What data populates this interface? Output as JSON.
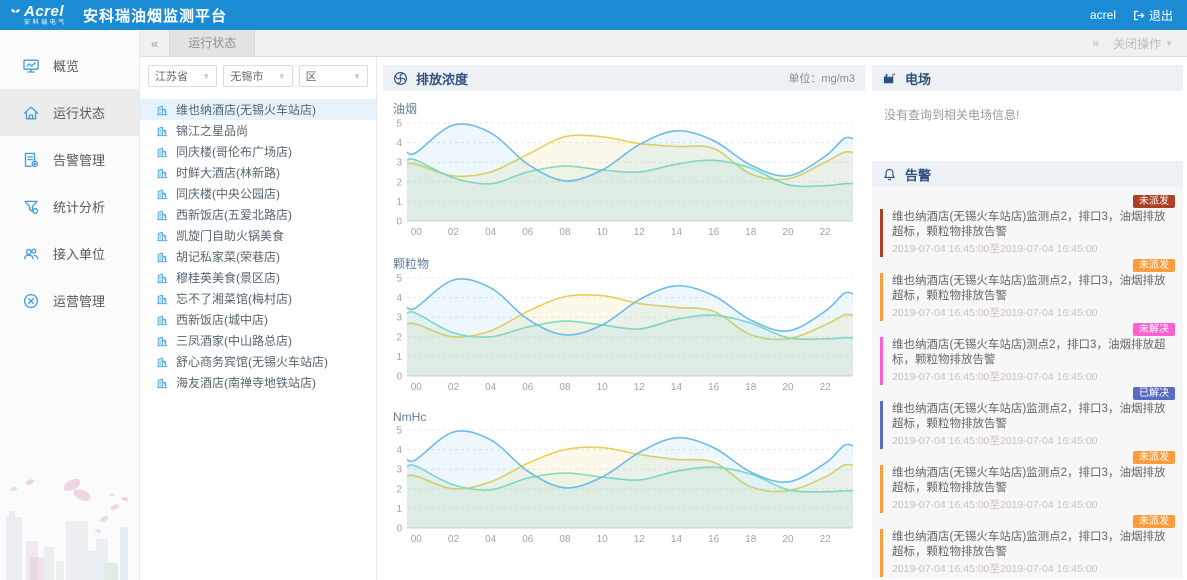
{
  "topbar": {
    "logo_text": "Acrel",
    "logo_sub": "安科瑞电气",
    "title": "安科瑞油烟监测平台",
    "username": "acrel",
    "logout": "退出"
  },
  "tabbar": {
    "collapse_icon": "«",
    "expand_icon": "»",
    "active_tab": "运行状态",
    "close_menu": "关闭操作"
  },
  "sidebar": {
    "items": [
      {
        "label": "概览",
        "icon": "overview-icon",
        "active": false
      },
      {
        "label": "运行状态",
        "icon": "running-status-icon",
        "active": true
      },
      {
        "label": "告警管理",
        "icon": "alarm-manage-icon",
        "active": false
      },
      {
        "label": "统计分析",
        "icon": "stats-icon",
        "active": false
      },
      {
        "label": "接入单位",
        "icon": "units-icon",
        "active": false
      },
      {
        "label": "运营管理",
        "icon": "ops-icon",
        "active": false
      }
    ]
  },
  "store_panel": {
    "filters": [
      {
        "value": "江苏省"
      },
      {
        "value": "无锡市"
      },
      {
        "value": "区"
      }
    ],
    "stores": [
      {
        "name": "维也纳酒店(无锡火车站店)",
        "selected": true
      },
      {
        "name": "锦江之星品尚",
        "selected": false
      },
      {
        "name": "同庆楼(哥伦布广场店)",
        "selected": false
      },
      {
        "name": "时鲜大酒店(林新路)",
        "selected": false
      },
      {
        "name": "同庆楼(中央公园店)",
        "selected": false
      },
      {
        "name": "西新饭店(五爱北路店)",
        "selected": false
      },
      {
        "name": "凯旋门自助火锅美食",
        "selected": false
      },
      {
        "name": "胡记私家菜(荣巷店)",
        "selected": false
      },
      {
        "name": "穆桂英美食(景区店)",
        "selected": false
      },
      {
        "name": "忘不了湘菜馆(梅村店)",
        "selected": false
      },
      {
        "name": "西新饭店(城中店)",
        "selected": false
      },
      {
        "name": "三凤酒家(中山路总店)",
        "selected": false
      },
      {
        "name": "舒心商务宾馆(无锡火车站店)",
        "selected": false
      },
      {
        "name": "海友酒店(南禅寺地铁站店)",
        "selected": false
      }
    ]
  },
  "charts_panel": {
    "title": "排放浓度",
    "unit": "单位：mg/m3"
  },
  "chart_data": [
    {
      "type": "area",
      "title": "油烟",
      "ylabel": "mg/m3",
      "ylim": [
        0,
        5
      ],
      "grid": true,
      "legend": "none",
      "x_hours": [
        0,
        2,
        4,
        6,
        8,
        10,
        12,
        14,
        16,
        18,
        20,
        22,
        23
      ],
      "x_tick_labels": [
        "00",
        "02",
        "04",
        "06",
        "08",
        "10",
        "12",
        "14",
        "16",
        "18",
        "20",
        "22"
      ],
      "series": [
        {
          "color": "#e6d154",
          "values": [
            2.9,
            2.3,
            2.5,
            3.4,
            4.3,
            4.3,
            3.95,
            3.8,
            3.7,
            2.4,
            2.15,
            3.0,
            3.5
          ]
        },
        {
          "color": "#85d8c0",
          "values": [
            3.1,
            2.2,
            1.9,
            2.5,
            2.8,
            2.6,
            2.5,
            2.9,
            3.1,
            2.7,
            1.85,
            1.8,
            1.9
          ]
        },
        {
          "color": "#6cbce8",
          "values": [
            3.5,
            4.9,
            4.5,
            2.9,
            2.05,
            2.6,
            3.9,
            4.6,
            4.1,
            2.85,
            2.3,
            3.3,
            4.2
          ]
        }
      ]
    },
    {
      "type": "area",
      "title": "颗粒物",
      "ylabel": "mg/m3",
      "ylim": [
        0,
        5
      ],
      "grid": true,
      "legend": "none",
      "x_hours": [
        0,
        2,
        4,
        6,
        8,
        10,
        12,
        14,
        16,
        18,
        20,
        22,
        23
      ],
      "x_tick_labels": [
        "00",
        "02",
        "04",
        "06",
        "08",
        "10",
        "12",
        "14",
        "16",
        "18",
        "20",
        "22"
      ],
      "series": [
        {
          "color": "#e6d154",
          "values": [
            2.65,
            2.0,
            2.3,
            3.3,
            4.05,
            4.1,
            3.7,
            3.5,
            3.3,
            2.1,
            1.9,
            2.6,
            3.1
          ]
        },
        {
          "color": "#85d8c0",
          "values": [
            3.2,
            2.2,
            2.0,
            2.5,
            2.8,
            2.6,
            2.4,
            2.9,
            3.1,
            2.7,
            1.95,
            1.9,
            1.95
          ]
        },
        {
          "color": "#6cbce8",
          "values": [
            3.5,
            4.9,
            4.5,
            2.9,
            2.1,
            2.6,
            3.9,
            4.6,
            4.1,
            2.85,
            2.3,
            3.3,
            4.2
          ]
        }
      ]
    },
    {
      "type": "area",
      "title": "NmHc",
      "ylabel": "mg/m3",
      "ylim": [
        0,
        5
      ],
      "grid": true,
      "legend": "none",
      "x_hours": [
        0,
        2,
        4,
        6,
        8,
        10,
        12,
        14,
        16,
        18,
        20,
        22,
        23
      ],
      "x_tick_labels": [
        "00",
        "02",
        "04",
        "06",
        "08",
        "10",
        "12",
        "14",
        "16",
        "18",
        "20",
        "22"
      ],
      "series": [
        {
          "color": "#e6d154",
          "values": [
            2.65,
            2.0,
            2.35,
            3.3,
            4.0,
            4.1,
            3.75,
            3.5,
            3.35,
            2.1,
            1.9,
            2.6,
            3.2
          ]
        },
        {
          "color": "#85d8c0",
          "values": [
            3.15,
            2.2,
            1.95,
            2.55,
            2.8,
            2.6,
            2.45,
            2.9,
            3.1,
            2.75,
            1.95,
            1.85,
            1.9
          ]
        },
        {
          "color": "#6cbce8",
          "values": [
            3.5,
            4.9,
            4.5,
            2.9,
            2.05,
            2.6,
            3.85,
            4.6,
            4.1,
            2.85,
            2.35,
            3.3,
            4.2
          ]
        }
      ]
    }
  ],
  "field_panel": {
    "title": "电场",
    "empty_message": "没有查询到相关电场信息!"
  },
  "alarm_panel": {
    "title": "告警",
    "alarms": [
      {
        "status": "未派发",
        "color": "#ad4127",
        "message": "维也纳酒店(无锡火车站店)监测点2，排口3，油烟排放超标，颗粒物排放告警",
        "time": "2019-07-04 16:45:00至2019-07-04 16:45:00"
      },
      {
        "status": "未派发",
        "color": "#fb9d3d",
        "message": "维也纳酒店(无锡火车站店)监测点2，排口3，油烟排放超标，颗粒物排放告警",
        "time": "2019-07-04 16:45:00至2019-07-04 16:45:00"
      },
      {
        "status": "未解决",
        "color": "#fc60d1",
        "message": "维也纳酒店(无锡火车站店)测点2，排口3，油烟排放超标，颗粒物排放告警",
        "time": "2019-07-04 16:45:00至2019-07-04 16:45:00"
      },
      {
        "status": "已解决",
        "color": "#5a6cc0",
        "message": "维也纳酒店(无锡火车站店)监测点2，排口3，油烟排放超标，颗粒物排放告警",
        "time": "2019-07-04 16:45:00至2019-07-04 16:45:00"
      },
      {
        "status": "未派发",
        "color": "#fb9d3d",
        "message": "维也纳酒店(无锡火车站店)监测点2，排口3，油烟排放超标，颗粒物排放告警",
        "time": "2019-07-04 16:45:00至2019-07-04 16:45:00"
      },
      {
        "status": "未派发",
        "color": "#fb9d3d",
        "message": "维也纳酒店(无锡火车站店)监测点2，排口3，油烟排放超标，颗粒物排放告警",
        "time": "2019-07-04 16:45:00至2019-07-04 16:45:00"
      }
    ]
  }
}
